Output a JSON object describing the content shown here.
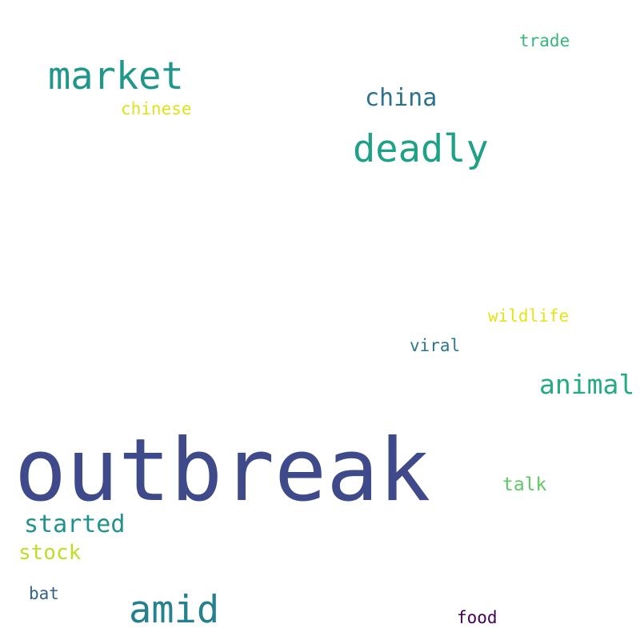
{
  "word_cloud": {
    "words": [
      {
        "text": "outbreak",
        "color": "#3e4a89"
      },
      {
        "text": "market",
        "color": "#21968b"
      },
      {
        "text": "deadly",
        "color": "#1fa187"
      },
      {
        "text": "amid",
        "color": "#26818e"
      },
      {
        "text": "china",
        "color": "#2c728e"
      },
      {
        "text": "animal",
        "color": "#25ab82"
      },
      {
        "text": "started",
        "color": "#21918c"
      },
      {
        "text": "stock",
        "color": "#bddf26"
      },
      {
        "text": "talk",
        "color": "#5ec962"
      },
      {
        "text": "trade",
        "color": "#35b779"
      },
      {
        "text": "chinese",
        "color": "#dde318"
      },
      {
        "text": "wildlife",
        "color": "#e5e419"
      },
      {
        "text": "viral",
        "color": "#2a788e"
      },
      {
        "text": "bat",
        "color": "#33638d"
      },
      {
        "text": "food",
        "color": "#440154"
      }
    ]
  }
}
